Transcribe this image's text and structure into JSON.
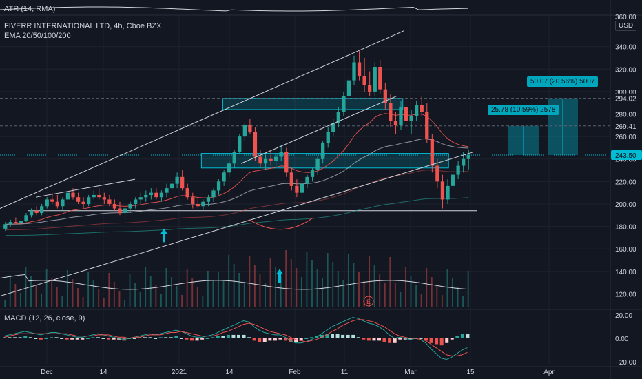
{
  "header": {
    "atr_label": "ATR (14, RMA)",
    "title": "FIVERR INTERNATIONAL LTD, 4h, Cboe BZX",
    "ema_label": "EMA 20/50/100/200",
    "macd_label": "MACD (12, 26, close, 9)",
    "currency": "USD"
  },
  "measure_labels": {
    "short": "25.78 (10.59%) 2578",
    "long": "50.07 (20.56%) 5007"
  },
  "price_labels": {
    "top_partial": "360.00",
    "level_294": "294.02",
    "level_269": "269.41",
    "current": "243.50"
  },
  "colors": {
    "background": "#131722",
    "up": "#26a69a",
    "down": "#ef5350",
    "accent": "#00bcd4",
    "grid": "#1e222d",
    "text": "#d1d4dc"
  },
  "chart_data": {
    "type": "candlestick",
    "price_axis": {
      "ticks": [
        "340.00",
        "320.00",
        "300.00",
        "280.00",
        "260.00",
        "240.00",
        "220.00",
        "200.00",
        "180.00",
        "160.00",
        "140.00",
        "120.00"
      ],
      "range": [
        108,
        368
      ]
    },
    "time_axis": {
      "ticks": [
        "Dec",
        "14",
        "2021",
        "14",
        "Feb",
        "11",
        "Mar",
        "15",
        "Apr"
      ]
    },
    "macd_axis": {
      "ticks": [
        "20.00",
        "0.00",
        "−20.00"
      ],
      "range": [
        -23,
        23
      ]
    },
    "levels": {
      "support": 194,
      "resistance_high": 294.02,
      "target_269": 269.41,
      "current": 243.5
    },
    "zones": [
      {
        "name": "upper-box",
        "from": 284,
        "to": 294,
        "range_x": [
          0.365,
          0.66
        ]
      },
      {
        "name": "lower-box",
        "from": 232,
        "to": 245,
        "range_x": [
          0.33,
          0.735
        ]
      }
    ],
    "candles": [
      [
        178,
        184,
        176,
        182
      ],
      [
        182,
        186,
        180,
        184
      ],
      [
        184,
        188,
        182,
        183
      ],
      [
        183,
        186,
        180,
        185
      ],
      [
        185,
        192,
        184,
        190
      ],
      [
        190,
        196,
        188,
        194
      ],
      [
        194,
        198,
        190,
        192
      ],
      [
        192,
        200,
        190,
        198
      ],
      [
        198,
        206,
        196,
        204
      ],
      [
        204,
        210,
        200,
        202
      ],
      [
        202,
        208,
        196,
        198
      ],
      [
        198,
        206,
        194,
        204
      ],
      [
        204,
        212,
        202,
        210
      ],
      [
        210,
        214,
        204,
        206
      ],
      [
        206,
        210,
        200,
        202
      ],
      [
        202,
        206,
        196,
        200
      ],
      [
        200,
        208,
        198,
        206
      ],
      [
        206,
        212,
        204,
        208
      ],
      [
        208,
        214,
        204,
        206
      ],
      [
        206,
        210,
        200,
        204
      ],
      [
        204,
        208,
        198,
        200
      ],
      [
        200,
        204,
        194,
        196
      ],
      [
        196,
        202,
        190,
        192
      ],
      [
        192,
        198,
        186,
        196
      ],
      [
        196,
        202,
        192,
        200
      ],
      [
        200,
        206,
        196,
        204
      ],
      [
        204,
        210,
        200,
        206
      ],
      [
        206,
        212,
        202,
        208
      ],
      [
        208,
        214,
        204,
        210
      ],
      [
        210,
        214,
        204,
        206
      ],
      [
        206,
        212,
        202,
        210
      ],
      [
        210,
        218,
        206,
        214
      ],
      [
        214,
        222,
        210,
        218
      ],
      [
        218,
        228,
        214,
        224
      ],
      [
        224,
        230,
        212,
        214
      ],
      [
        214,
        218,
        204,
        206
      ],
      [
        206,
        210,
        196,
        200
      ],
      [
        200,
        206,
        196,
        198
      ],
      [
        198,
        204,
        194,
        202
      ],
      [
        202,
        208,
        198,
        206
      ],
      [
        206,
        214,
        202,
        212
      ],
      [
        212,
        222,
        208,
        220
      ],
      [
        220,
        230,
        216,
        228
      ],
      [
        228,
        238,
        224,
        236
      ],
      [
        236,
        248,
        232,
        246
      ],
      [
        246,
        262,
        244,
        260
      ],
      [
        260,
        272,
        256,
        270
      ],
      [
        270,
        276,
        262,
        264
      ],
      [
        264,
        268,
        238,
        242
      ],
      [
        242,
        248,
        232,
        236
      ],
      [
        236,
        244,
        230,
        240
      ],
      [
        240,
        248,
        234,
        238
      ],
      [
        238,
        244,
        232,
        242
      ],
      [
        242,
        252,
        238,
        246
      ],
      [
        246,
        250,
        224,
        228
      ],
      [
        228,
        232,
        212,
        216
      ],
      [
        216,
        222,
        206,
        210
      ],
      [
        210,
        220,
        204,
        218
      ],
      [
        218,
        226,
        214,
        224
      ],
      [
        224,
        232,
        220,
        230
      ],
      [
        230,
        242,
        226,
        240
      ],
      [
        240,
        256,
        236,
        254
      ],
      [
        254,
        268,
        250,
        264
      ],
      [
        264,
        276,
        260,
        272
      ],
      [
        272,
        286,
        268,
        282
      ],
      [
        282,
        300,
        278,
        296
      ],
      [
        296,
        314,
        292,
        310
      ],
      [
        310,
        332,
        306,
        326
      ],
      [
        326,
        336,
        310,
        314
      ],
      [
        314,
        330,
        300,
        306
      ],
      [
        306,
        318,
        296,
        300
      ],
      [
        300,
        326,
        296,
        322
      ],
      [
        322,
        328,
        298,
        302
      ],
      [
        302,
        308,
        284,
        290
      ],
      [
        290,
        298,
        268,
        274
      ],
      [
        274,
        282,
        262,
        270
      ],
      [
        270,
        292,
        266,
        286
      ],
      [
        286,
        294,
        270,
        274
      ],
      [
        274,
        284,
        262,
        278
      ],
      [
        278,
        292,
        274,
        288
      ],
      [
        288,
        296,
        278,
        282
      ],
      [
        282,
        290,
        254,
        258
      ],
      [
        258,
        262,
        228,
        234
      ],
      [
        234,
        240,
        214,
        220
      ],
      [
        220,
        226,
        196,
        204
      ],
      [
        204,
        222,
        200,
        216
      ],
      [
        216,
        232,
        212,
        226
      ],
      [
        226,
        238,
        222,
        234
      ],
      [
        234,
        246,
        228,
        240
      ],
      [
        240,
        248,
        230,
        243.5
      ]
    ],
    "macd": [
      2,
      3,
      4,
      5,
      6,
      5,
      4,
      3,
      4,
      5,
      5,
      4,
      3,
      2,
      1,
      1,
      2,
      3,
      4,
      3,
      2,
      1,
      0,
      -1,
      0,
      1,
      2,
      3,
      4,
      3,
      4,
      5,
      6,
      7,
      6,
      4,
      2,
      1,
      1,
      2,
      3,
      5,
      7,
      9,
      11,
      13,
      15,
      14,
      10,
      7,
      5,
      4,
      3,
      3,
      1,
      -2,
      -4,
      -4,
      -3,
      -1,
      1,
      4,
      7,
      10,
      12,
      14,
      16,
      18,
      17,
      15,
      13,
      12,
      10,
      7,
      3,
      0,
      1,
      0,
      -1,
      0,
      -1,
      -4,
      -9,
      -13,
      -17,
      -18,
      -16,
      -13,
      -10,
      -8
    ],
    "signal": [
      1,
      2,
      3,
      4,
      4,
      4,
      4,
      4,
      4,
      4,
      4,
      4,
      4,
      3,
      2,
      2,
      2,
      2,
      3,
      3,
      3,
      2,
      1,
      1,
      0,
      1,
      1,
      2,
      3,
      3,
      3,
      4,
      5,
      5,
      6,
      5,
      4,
      3,
      2,
      2,
      2,
      3,
      5,
      6,
      8,
      10,
      12,
      13,
      12,
      10,
      8,
      6,
      5,
      4,
      3,
      1,
      -1,
      -2,
      -3,
      -2,
      -1,
      1,
      3,
      6,
      8,
      11,
      13,
      15,
      16,
      16,
      15,
      14,
      12,
      10,
      7,
      4,
      2,
      1,
      0,
      0,
      -1,
      -2,
      -5,
      -8,
      -11,
      -14,
      -15,
      -15,
      -14,
      -12
    ]
  }
}
